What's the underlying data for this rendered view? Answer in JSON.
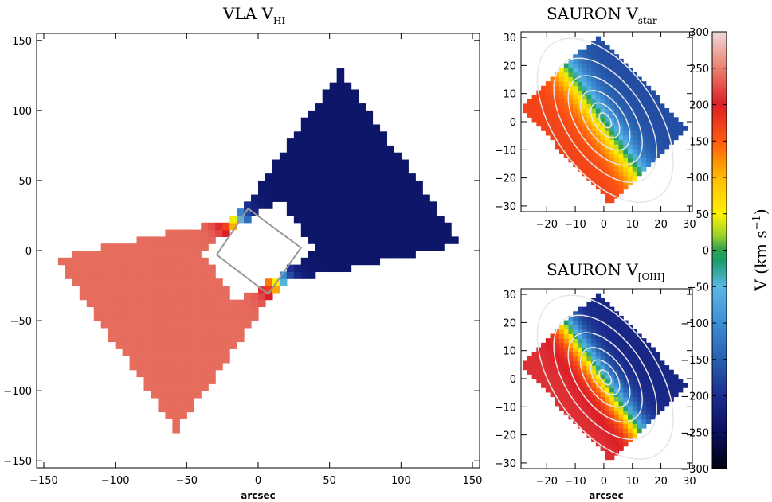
{
  "chart_data": [
    {
      "id": "vla",
      "type": "heatmap",
      "title_main": "VLA V",
      "title_sub": "HI",
      "xlabel": "arcsec",
      "ylabel": "",
      "xlim": [
        -155,
        155
      ],
      "ylim": [
        -155,
        155
      ],
      "xticks": [
        -150,
        -100,
        -50,
        0,
        50,
        100,
        150
      ],
      "yticks": [
        -150,
        -100,
        -50,
        0,
        50,
        100,
        150
      ],
      "field": {
        "pa_deg": 56,
        "v_max": 240,
        "r_turn": 10,
        "r_max": 120,
        "r_hole": 33,
        "w_halfmax": 75,
        "w_halfmin": 28
      },
      "overlay_square_corners": [
        [
          -7,
          30
        ],
        [
          30,
          2
        ],
        [
          7,
          -31
        ],
        [
          -29,
          -3
        ]
      ],
      "overlay_color": "#999999"
    },
    {
      "id": "star",
      "type": "heatmap",
      "title_main": "SAURON V",
      "title_sub": "star",
      "xlabel": "",
      "ylabel": "",
      "xlim": [
        -29,
        31
      ],
      "ylim": [
        -32,
        32
      ],
      "xticks": [
        -20,
        -10,
        0,
        10,
        20,
        30
      ],
      "yticks": [
        -30,
        -20,
        -10,
        0,
        10,
        20,
        30
      ],
      "field": {
        "pa_deg": 56,
        "v_max": 170,
        "r_turn": 6
      },
      "footprint": [
        [
          -2,
          31
        ],
        [
          -29,
          5
        ],
        [
          2,
          -29
        ],
        [
          29,
          -2
        ]
      ],
      "contours_r": [
        3,
        7,
        12,
        18,
        25,
        33
      ]
    },
    {
      "id": "oiii",
      "type": "heatmap",
      "title_main": "SAURON V",
      "title_sub": "[OIII]",
      "xlabel": "arcsec",
      "ylabel": "",
      "xlim": [
        -29,
        31
      ],
      "ylim": [
        -32,
        32
      ],
      "xticks": [
        -20,
        -10,
        0,
        10,
        20,
        30
      ],
      "yticks": [
        -30,
        -20,
        -10,
        0,
        10,
        20,
        30
      ],
      "field": {
        "pa_deg": 56,
        "v_max": 210,
        "r_turn": 5
      },
      "footprint": [
        [
          -2,
          31
        ],
        [
          -29,
          5
        ],
        [
          2,
          -29
        ],
        [
          29,
          -2
        ]
      ],
      "contours_r": [
        3,
        7,
        12,
        18,
        25,
        33
      ]
    }
  ],
  "colorbar": {
    "range": [
      -300,
      300
    ],
    "ticks": [
      300,
      250,
      200,
      150,
      100,
      50,
      0,
      -50,
      -100,
      -150,
      -200,
      -250,
      -300
    ],
    "label": "V (km s",
    "label_sup": "−1",
    "label_close": ")",
    "stops": [
      [
        -300,
        "#000010"
      ],
      [
        -250,
        "#0a1060"
      ],
      [
        -200,
        "#1c2c8e"
      ],
      [
        -150,
        "#2860b0"
      ],
      [
        -100,
        "#3d8ed4"
      ],
      [
        -50,
        "#5cb8e6"
      ],
      [
        -15,
        "#1a9e6e"
      ],
      [
        0,
        "#2fa050"
      ],
      [
        20,
        "#9ed02a"
      ],
      [
        50,
        "#fff200"
      ],
      [
        100,
        "#ffbb00"
      ],
      [
        150,
        "#ff5a10"
      ],
      [
        200,
        "#dc1e28"
      ],
      [
        250,
        "#e8806c"
      ],
      [
        300,
        "#f2d8d8"
      ]
    ]
  }
}
